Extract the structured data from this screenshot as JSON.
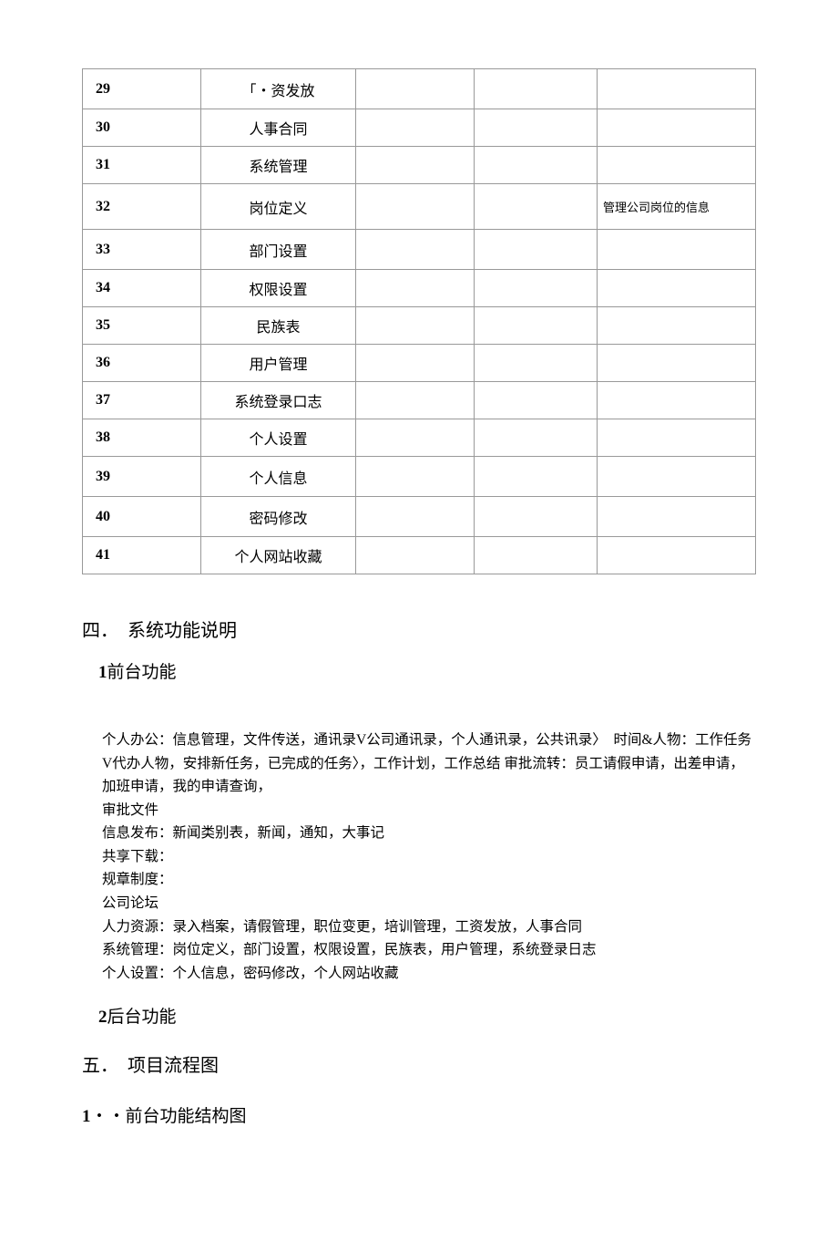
{
  "table": {
    "rows": [
      {
        "num": "29",
        "name": "「・资发放",
        "c3": "",
        "c4": "",
        "c5": "",
        "cls": "tall"
      },
      {
        "num": "30",
        "name": "人事合同",
        "c3": "",
        "c4": "",
        "c5": "",
        "cls": ""
      },
      {
        "num": "31",
        "name": "系统管理",
        "c3": "",
        "c4": "",
        "c5": "",
        "cls": ""
      },
      {
        "num": "32",
        "name": "岗位定义",
        "c3": "",
        "c4": "",
        "c5": "管理公司岗位的信息",
        "cls": "taller"
      },
      {
        "num": "33",
        "name": "部门设置",
        "c3": "",
        "c4": "",
        "c5": "",
        "cls": "tall"
      },
      {
        "num": "34",
        "name": "权限设置",
        "c3": "",
        "c4": "",
        "c5": "",
        "cls": ""
      },
      {
        "num": "35",
        "name": "民族表",
        "c3": "",
        "c4": "",
        "c5": "",
        "cls": ""
      },
      {
        "num": "36",
        "name": "用户管理",
        "c3": "",
        "c4": "",
        "c5": "",
        "cls": ""
      },
      {
        "num": "37",
        "name": "系统登录口志",
        "c3": "",
        "c4": "",
        "c5": "",
        "cls": ""
      },
      {
        "num": "38",
        "name": "个人设置",
        "c3": "",
        "c4": "",
        "c5": "",
        "cls": ""
      },
      {
        "num": "39",
        "name": "个人信息",
        "c3": "",
        "c4": "",
        "c5": "",
        "cls": "tall"
      },
      {
        "num": "40",
        "name": "密码修改",
        "c3": "",
        "c4": "",
        "c5": "",
        "cls": "tall"
      },
      {
        "num": "41",
        "name": "个人网站收藏",
        "c3": "",
        "c4": "",
        "c5": "",
        "cls": ""
      }
    ]
  },
  "headings": {
    "section4": "四．　系统功能说明",
    "sub1_num": "1",
    "sub1_text": "前台功能",
    "sub2_num": "2",
    "sub2_text": "后台功能",
    "section5": "五．　项目流程图",
    "sub3_num": "1",
    "sub3_text": "・・前台功能结构图"
  },
  "body": {
    "p1": "个人办公：信息管理，文件传送，通讯录V公司通讯录，个人通讯录，公共讯录〉　时间&人物：工作任务V代办人物，安排新任务，已完成的任务〉，工作计划，工作总结 审批流转：员工请假申请，出差申请，加班申请，我的申请查询，",
    "p2": "审批文件",
    "p3": "信息发布：新闻类别表，新闻，通知，大事记",
    "p4": "共享下载：",
    "p5": "规章制度：",
    "p6": "公司论坛",
    "p7": "人力资源：录入档案，请假管理，职位变更，培训管理，工资发放，人事合同",
    "p8": "系统管理：岗位定义，部门设置，权限设置，民族表，用户管理，系统登录日志",
    "p9": "个人设置：个人信息，密码修改，个人网站收藏"
  }
}
